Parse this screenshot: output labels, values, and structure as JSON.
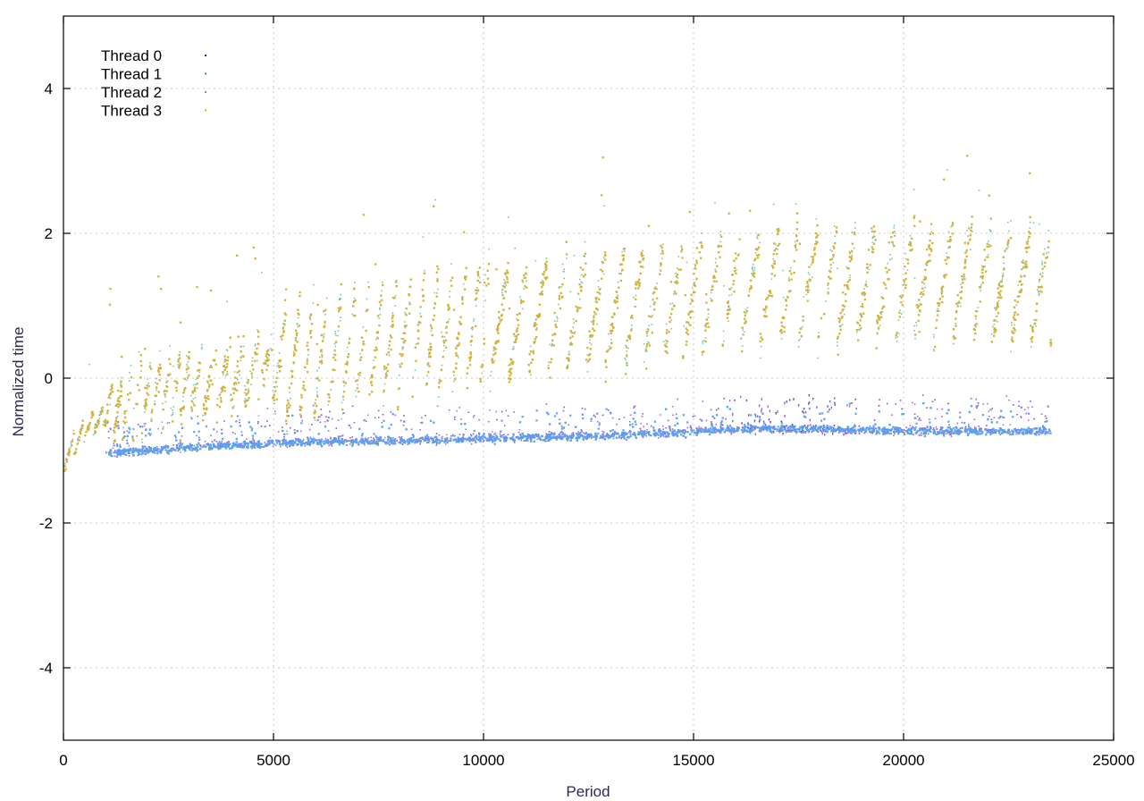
{
  "chart_data": {
    "type": "scatter",
    "title": "",
    "xlabel": "Period",
    "ylabel": "Normalized time",
    "xlim": [
      0,
      25000
    ],
    "ylim": [
      -5,
      5
    ],
    "xticks": [
      0,
      5000,
      10000,
      15000,
      20000,
      25000
    ],
    "yticks": [
      -4,
      -2,
      0,
      2,
      4
    ],
    "grid": true,
    "legend_position": "top-left",
    "series": [
      {
        "name": "Thread 0",
        "color": "#2b2b8a",
        "description_points": [
          [
            0,
            -1.15
          ],
          [
            300,
            -1.0
          ],
          [
            600,
            -0.75
          ],
          [
            1000,
            -1.02
          ],
          [
            3000,
            -0.95
          ],
          [
            5000,
            -0.88
          ],
          [
            8000,
            -0.85
          ],
          [
            10000,
            -0.82
          ],
          [
            13000,
            -0.78
          ],
          [
            15000,
            -0.72
          ],
          [
            17000,
            -0.68
          ],
          [
            20000,
            -0.72
          ],
          [
            23500,
            -0.72
          ]
        ]
      },
      {
        "name": "Thread 1",
        "color": "#2e9e6e",
        "description_points": [
          [
            0,
            -1.1
          ],
          [
            500,
            -0.7
          ],
          [
            1000,
            -0.5
          ],
          [
            2000,
            -0.25
          ],
          [
            4000,
            0.05
          ],
          [
            6000,
            0.3
          ],
          [
            8000,
            0.55
          ],
          [
            10000,
            0.75
          ],
          [
            12000,
            0.9
          ],
          [
            14000,
            1.05
          ],
          [
            16000,
            1.2
          ],
          [
            18000,
            1.3
          ],
          [
            20000,
            1.35
          ],
          [
            22000,
            1.4
          ],
          [
            23500,
            1.2
          ]
        ]
      },
      {
        "name": "Thread 2",
        "color": "#b070e0",
        "description_points": [
          [
            1000,
            -1.02
          ],
          [
            3000,
            -0.95
          ],
          [
            5000,
            -0.88
          ],
          [
            8000,
            -0.85
          ],
          [
            10000,
            -0.82
          ],
          [
            13000,
            -0.78
          ],
          [
            15000,
            -0.72
          ],
          [
            17000,
            -0.7
          ],
          [
            20000,
            -0.72
          ],
          [
            23500,
            -0.72
          ]
        ]
      },
      {
        "name": "Thread 3",
        "color": "#d9b030",
        "description_points": [
          [
            0,
            -1.1
          ],
          [
            500,
            -0.7
          ],
          [
            1000,
            -0.5
          ],
          [
            2000,
            -0.25
          ],
          [
            4000,
            0.05
          ],
          [
            6000,
            0.3
          ],
          [
            8000,
            0.55
          ],
          [
            10000,
            0.75
          ],
          [
            12000,
            0.9
          ],
          [
            14000,
            1.05
          ],
          [
            16000,
            1.2
          ],
          [
            18000,
            1.3
          ],
          [
            20000,
            1.35
          ],
          [
            22000,
            1.4
          ],
          [
            23500,
            1.2
          ]
        ]
      }
    ],
    "low_band_color": "#5aa0f0"
  }
}
